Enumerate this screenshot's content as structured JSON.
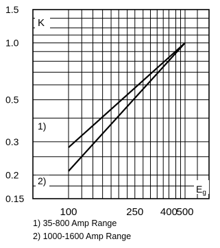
{
  "chart_data": {
    "type": "line",
    "title": "",
    "ylabel": "K",
    "xlabel": "Eg",
    "xlabel_main": "E",
    "xlabel_sub": "g",
    "xscale": "log",
    "yscale": "log",
    "xlim": [
      100,
      500
    ],
    "ylim": [
      0.15,
      1.5
    ],
    "grid": true,
    "x_ticks": [
      100,
      250,
      400,
      500
    ],
    "x_tick_labels": [
      "100",
      "250",
      "400",
      "500"
    ],
    "y_ticks": [
      1.5,
      1.0,
      0.5,
      0.3,
      0.2,
      0.15
    ],
    "y_tick_labels": [
      "1.5",
      "1.0",
      "0.5",
      "0.3",
      "0.2",
      "0.15"
    ],
    "series": [
      {
        "name": "1)",
        "x": [
          100,
          500
        ],
        "y": [
          0.28,
          1.0
        ]
      },
      {
        "name": "2)",
        "x": [
          100,
          500
        ],
        "y": [
          0.21,
          1.0
        ]
      }
    ],
    "legend": [
      "1) 35-800 Amp Range",
      "2) 1000-1600 Amp Range"
    ]
  }
}
